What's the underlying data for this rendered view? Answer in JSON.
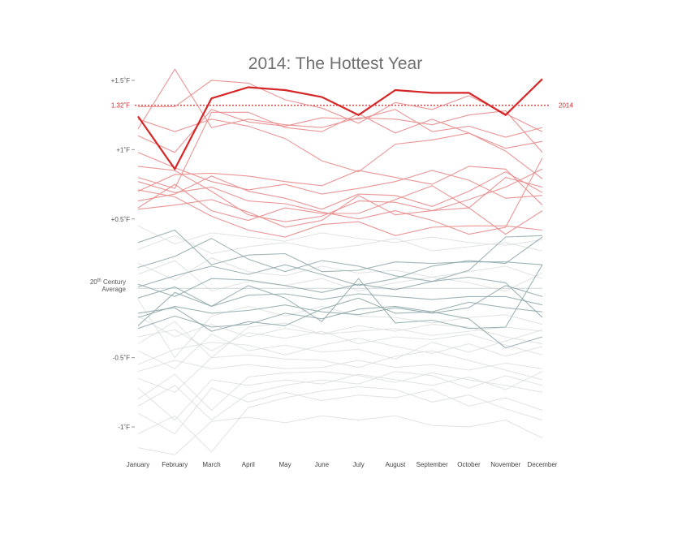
{
  "chart_data": {
    "type": "line",
    "title": "2014: The Hottest Year",
    "xlabel": "",
    "ylabel": "",
    "categories": [
      "January",
      "February",
      "March",
      "April",
      "May",
      "June",
      "July",
      "August",
      "September",
      "October",
      "November",
      "December"
    ],
    "ylim": [
      -1.25,
      1.55
    ],
    "y_ticks": [
      {
        "value": 1.5,
        "label": "+1.5˚F"
      },
      {
        "value": 1.0,
        "label": "+1˚F"
      },
      {
        "value": 0.5,
        "label": "+0.5˚F"
      },
      {
        "value": -0.5,
        "label": "-0.5˚F"
      },
      {
        "value": -1.0,
        "label": "-1˚F"
      }
    ],
    "baseline": {
      "value": 0,
      "label_line1": "20th Century",
      "label_line2": "Average",
      "label_superscript": "th"
    },
    "reference_line": {
      "value": 1.32,
      "label": "1.32˚F",
      "series_label": "2014",
      "color": "#d62728"
    },
    "colors": {
      "highlight": "#d62728",
      "warm": "#e88a8a",
      "cool": "#8ea8aa",
      "faint": "#d9dcdc"
    },
    "highlight_series": {
      "name": "2014",
      "values": [
        1.24,
        0.86,
        1.37,
        1.45,
        1.43,
        1.38,
        1.25,
        1.43,
        1.41,
        1.41,
        1.25,
        1.51
      ]
    },
    "series": [
      {
        "values": [
          1.15,
          1.58,
          1.16,
          1.22,
          1.18,
          1.16,
          1.23,
          1.22,
          1.18,
          1.25,
          1.28,
          0.98
        ]
      },
      {
        "values": [
          1.31,
          1.31,
          1.5,
          1.48,
          1.36,
          1.3,
          1.19,
          1.34,
          1.29,
          1.39,
          1.26,
          1.13
        ]
      },
      {
        "values": [
          1.1,
          0.98,
          1.29,
          1.2,
          1.17,
          1.23,
          1.22,
          1.29,
          1.13,
          1.17,
          1.09,
          1.16
        ]
      },
      {
        "values": [
          1.22,
          1.13,
          1.22,
          1.17,
          1.08,
          0.92,
          0.84,
          1.04,
          1.07,
          1.12,
          1.01,
          1.06
        ]
      },
      {
        "values": [
          0.8,
          0.72,
          1.27,
          1.27,
          1.16,
          1.13,
          1.26,
          1.12,
          1.22,
          1.12,
          0.99,
          0.79
        ]
      },
      {
        "values": [
          0.98,
          0.87,
          0.77,
          0.71,
          0.75,
          0.68,
          0.72,
          0.77,
          0.85,
          0.78,
          0.65,
          0.67
        ]
      },
      {
        "values": [
          0.7,
          0.82,
          0.83,
          0.81,
          0.77,
          0.74,
          0.85,
          0.8,
          0.75,
          0.88,
          0.86,
          0.6
        ]
      },
      {
        "values": [
          0.58,
          0.75,
          0.56,
          0.49,
          0.58,
          0.54,
          0.54,
          0.64,
          0.74,
          0.58,
          0.39,
          0.56
        ]
      },
      {
        "values": [
          0.63,
          0.68,
          0.81,
          0.7,
          0.65,
          0.57,
          0.68,
          0.67,
          0.59,
          0.7,
          0.84,
          0.69
        ]
      },
      {
        "values": [
          0.88,
          0.85,
          0.7,
          0.53,
          0.48,
          0.52,
          0.63,
          0.62,
          0.56,
          0.58,
          0.8,
          0.73
        ]
      },
      {
        "values": [
          0.57,
          0.6,
          0.64,
          0.55,
          0.44,
          0.49,
          0.67,
          0.53,
          0.56,
          0.64,
          0.73,
          0.86
        ]
      },
      {
        "values": [
          0.71,
          0.66,
          0.52,
          0.42,
          0.37,
          0.46,
          0.48,
          0.38,
          0.44,
          0.45,
          0.45,
          0.42
        ]
      },
      {
        "values": [
          0.77,
          0.69,
          0.73,
          0.63,
          0.61,
          0.55,
          0.5,
          0.56,
          0.49,
          0.39,
          0.44,
          0.94
        ]
      }
    ],
    "cool_series": [
      {
        "values": [
          0.33,
          0.42,
          0.17,
          0.24,
          0.25,
          0.12,
          0.13,
          0.19,
          0.18,
          0.19,
          0.19,
          0.17
        ]
      },
      {
        "values": [
          0.15,
          0.23,
          0.36,
          0.21,
          0.12,
          0.2,
          0.16,
          0.09,
          0.05,
          0.13,
          0.37,
          0.38
        ]
      },
      {
        "values": [
          0.01,
          0.09,
          0.16,
          0.1,
          0.17,
          0.1,
          0.02,
          0.07,
          0.16,
          0.2,
          0.18,
          0.37
        ]
      },
      {
        "values": [
          -0.07,
          0.01,
          -0.13,
          -0.05,
          -0.04,
          -0.08,
          -0.04,
          -0.06,
          -0.08,
          -0.06,
          -0.06,
          -0.12
        ]
      },
      {
        "values": [
          -0.21,
          -0.13,
          -0.18,
          -0.16,
          -0.12,
          -0.17,
          -0.19,
          -0.14,
          -0.18,
          -0.14,
          0.02,
          -0.06
        ]
      },
      {
        "values": [
          -0.29,
          -0.2,
          -0.28,
          -0.26,
          -0.18,
          -0.22,
          -0.15,
          -0.13,
          -0.17,
          -0.1,
          -0.14,
          -0.17
        ]
      },
      {
        "values": [
          -0.18,
          -0.14,
          -0.31,
          -0.24,
          -0.27,
          -0.15,
          -0.07,
          -0.18,
          -0.17,
          -0.22,
          -0.43,
          -0.35
        ]
      },
      {
        "values": [
          -0.27,
          -0.03,
          -0.13,
          0.02,
          -0.07,
          -0.24,
          0.07,
          -0.25,
          -0.23,
          -0.29,
          -0.28,
          0.17
        ]
      },
      {
        "values": [
          0.03,
          -0.06,
          0.07,
          0.06,
          0.02,
          -0.03,
          0.03,
          -0.01,
          0.05,
          0.08,
          0.04,
          -0.21
        ]
      }
    ],
    "faint_series": [
      {
        "values": [
          -0.35,
          -0.3,
          -0.45,
          -0.32,
          -0.36,
          -0.31,
          -0.4,
          -0.35,
          -0.37,
          -0.33,
          -0.41,
          -0.48
        ]
      },
      {
        "values": [
          -0.55,
          -0.44,
          -0.39,
          -0.41,
          -0.48,
          -0.41,
          -0.36,
          -0.42,
          -0.47,
          -0.4,
          -0.49,
          -0.42
        ]
      },
      {
        "values": [
          -0.65,
          -0.75,
          -0.5,
          -0.48,
          -0.51,
          -0.52,
          -0.57,
          -0.49,
          -0.45,
          -0.52,
          -0.59,
          -0.66
        ]
      },
      {
        "values": [
          -0.8,
          -0.62,
          -0.88,
          -0.64,
          -0.61,
          -0.6,
          -0.63,
          -0.68,
          -0.61,
          -0.66,
          -0.7,
          -0.75
        ]
      },
      {
        "values": [
          -1.05,
          -0.92,
          -1.18,
          -0.86,
          -0.79,
          -0.74,
          -0.71,
          -0.73,
          -0.82,
          -0.77,
          -0.87,
          -0.95
        ]
      },
      {
        "values": [
          -0.45,
          -0.58,
          -0.33,
          -0.45,
          -0.41,
          -0.46,
          -0.44,
          -0.51,
          -0.39,
          -0.46,
          -0.38,
          -0.3
        ]
      },
      {
        "values": [
          -0.2,
          -0.35,
          -0.26,
          -0.35,
          -0.29,
          -0.33,
          -0.31,
          -0.29,
          -0.34,
          -0.31,
          -0.28,
          -0.31
        ]
      },
      {
        "values": [
          -0.9,
          -1.05,
          -0.72,
          -0.82,
          -0.75,
          -0.81,
          -0.77,
          -0.79,
          -0.73,
          -0.85,
          -0.79,
          -0.88
        ]
      },
      {
        "values": [
          -0.72,
          -0.95,
          -0.66,
          -0.7,
          -0.66,
          -0.69,
          -0.62,
          -0.66,
          -0.7,
          -0.64,
          -0.73,
          -0.6
        ]
      },
      {
        "values": [
          -0.6,
          -0.52,
          -0.58,
          -0.55,
          -0.58,
          -0.57,
          -0.52,
          -0.57,
          -0.55,
          -0.59,
          -0.54,
          -0.58
        ]
      },
      {
        "values": [
          0.45,
          0.32,
          0.4,
          0.37,
          0.34,
          0.4,
          0.36,
          0.33,
          0.37,
          0.33,
          0.31,
          0.35
        ]
      },
      {
        "values": [
          0.28,
          0.38,
          0.25,
          0.3,
          0.33,
          0.28,
          0.31,
          0.36,
          0.27,
          0.3,
          0.33,
          0.27
        ]
      },
      {
        "values": [
          -1.15,
          -1.2,
          -0.96,
          -0.93,
          -0.97,
          -0.92,
          -0.95,
          -0.92,
          -0.99,
          -1.0,
          -0.95,
          -1.08
        ]
      },
      {
        "values": [
          -0.4,
          -0.24,
          -0.5,
          -0.28,
          -0.25,
          -0.33,
          -0.27,
          -0.31,
          -0.26,
          -0.28,
          -0.35,
          -0.4
        ]
      },
      {
        "values": [
          0.18,
          0.06,
          0.22,
          0.12,
          0.09,
          0.16,
          0.11,
          0.13,
          0.08,
          0.12,
          0.16,
          0.07
        ]
      },
      {
        "values": [
          -0.08,
          -0.5,
          -0.2,
          -0.13,
          -0.2,
          -0.13,
          -0.2,
          -0.21,
          -0.25,
          -0.21,
          -0.19,
          -0.26
        ]
      },
      {
        "values": [
          -0.85,
          -0.7,
          -0.95,
          -0.76,
          -0.7,
          -0.66,
          -0.69,
          -0.6,
          -0.63,
          -0.72,
          -0.63,
          -0.7
        ]
      },
      {
        "values": [
          0.1,
          0.2,
          -0.02,
          0.05,
          0.02,
          0.07,
          -0.02,
          0.04,
          0.08,
          0.04,
          -0.02,
          0.11
        ]
      }
    ]
  }
}
